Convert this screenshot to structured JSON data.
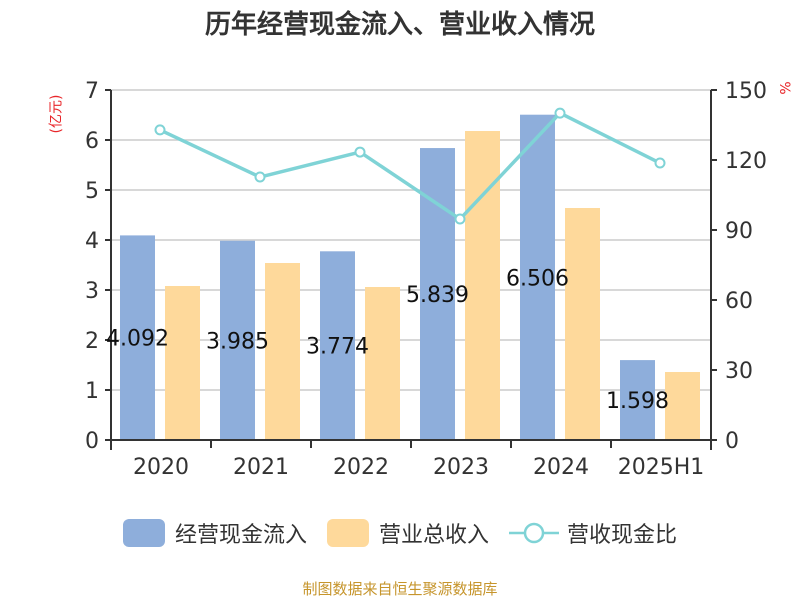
{
  "title": "历年经营现金流入、营业收入情况",
  "source": "制图数据来自恒生聚源数据库",
  "colors": {
    "cash_inflow": "#8eaedb",
    "revenue": "#fed99b",
    "ratio": "#7fd3d6",
    "unit": "#e8262a",
    "source": "#c6952c",
    "axis": "#333333",
    "grid": "#cccccc"
  },
  "legend": [
    {
      "label": "经营现金流入",
      "type": "bar",
      "color": "#8eaedb"
    },
    {
      "label": "营业总收入",
      "type": "bar",
      "color": "#fed99b"
    },
    {
      "label": "营收现金比",
      "type": "line",
      "color": "#7fd3d6"
    }
  ],
  "chart_data": {
    "type": "bar",
    "title": "历年经营现金流入、营业收入情况",
    "categories": [
      "2020",
      "2021",
      "2022",
      "2023",
      "2024",
      "2025H1"
    ],
    "series": [
      {
        "name": "经营现金流入",
        "type": "bar",
        "axis": "left",
        "values": [
          4.092,
          3.985,
          3.774,
          5.839,
          6.506,
          1.598
        ],
        "data_labels": [
          "4.092",
          "3.985",
          "3.774",
          "5.839",
          "6.506",
          "1.598"
        ]
      },
      {
        "name": "营业总收入",
        "type": "bar",
        "axis": "left",
        "values": [
          3.08,
          3.54,
          3.06,
          6.18,
          4.64,
          1.36
        ]
      },
      {
        "name": "营收现金比",
        "type": "line",
        "axis": "right",
        "values": [
          132.9,
          112.7,
          123.4,
          94.7,
          140.1,
          118.7
        ]
      }
    ],
    "xlabel": "",
    "ylabel": "(亿元)",
    "ylabel_right": "%",
    "ylim": [
      0,
      7
    ],
    "yticks": [
      0,
      1,
      2,
      3,
      4,
      5,
      6,
      7
    ],
    "ylim_right": [
      0,
      150
    ],
    "yticks_right": [
      0,
      30,
      60,
      90,
      120,
      150
    ],
    "grid": true,
    "legend_position": "bottom"
  }
}
